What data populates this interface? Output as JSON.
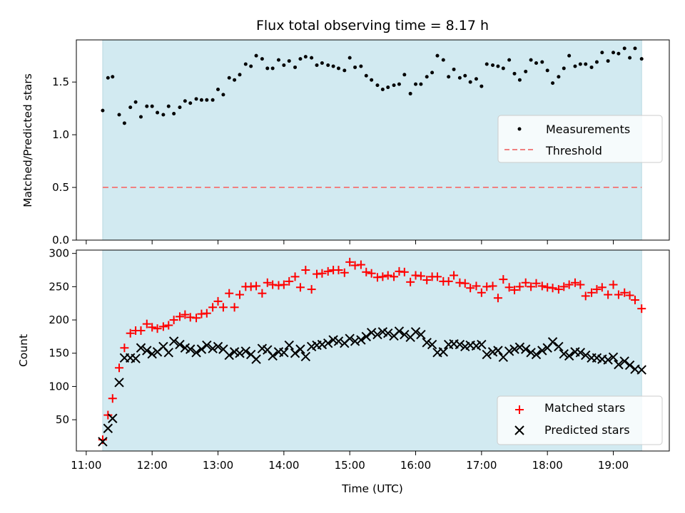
{
  "chart_data": [
    {
      "type": "scatter",
      "title": "Flux total observing time = 8.17 h",
      "ylabel": "Matched/Predicted stars",
      "xlabel": "",
      "ylim": [
        0,
        1.9
      ],
      "yticks": [
        0.0,
        0.5,
        1.0,
        1.5
      ],
      "ytick_labels": [
        "0.0",
        "0.5",
        "1.0",
        "1.5"
      ],
      "xlim": [
        10.85,
        19.85
      ],
      "shaded_range": [
        11.25,
        19.43
      ],
      "shade_color": "#d2eaf1",
      "legend_position": "center-right",
      "series": [
        {
          "name": "Measurements",
          "marker": "dot",
          "color": "#000000",
          "x": [
            11.25,
            11.33,
            11.4,
            11.5,
            11.58,
            11.67,
            11.75,
            11.83,
            11.92,
            12.0,
            12.08,
            12.17,
            12.25,
            12.33,
            12.42,
            12.5,
            12.58,
            12.67,
            12.75,
            12.83,
            12.92,
            13.0,
            13.08,
            13.17,
            13.25,
            13.33,
            13.42,
            13.5,
            13.58,
            13.67,
            13.75,
            13.83,
            13.92,
            14.0,
            14.08,
            14.17,
            14.25,
            14.33,
            14.42,
            14.5,
            14.58,
            14.67,
            14.75,
            14.83,
            14.92,
            15.0,
            15.08,
            15.17,
            15.25,
            15.33,
            15.42,
            15.5,
            15.58,
            15.67,
            15.75,
            15.83,
            15.92,
            16.0,
            16.08,
            16.17,
            16.25,
            16.33,
            16.42,
            16.5,
            16.58,
            16.67,
            16.75,
            16.83,
            16.92,
            17.0,
            17.08,
            17.17,
            17.25,
            17.33,
            17.42,
            17.5,
            17.58,
            17.67,
            17.75,
            17.83,
            17.92,
            18.0,
            18.08,
            18.17,
            18.25,
            18.33,
            18.42,
            18.5,
            18.58,
            18.67,
            18.75,
            18.83,
            18.92,
            19.0,
            19.08,
            19.17,
            19.25,
            19.33,
            19.43
          ],
          "y": [
            1.23,
            1.54,
            1.55,
            1.19,
            1.11,
            1.26,
            1.31,
            1.17,
            1.27,
            1.27,
            1.21,
            1.19,
            1.27,
            1.2,
            1.26,
            1.32,
            1.3,
            1.34,
            1.33,
            1.33,
            1.33,
            1.43,
            1.38,
            1.54,
            1.52,
            1.57,
            1.67,
            1.65,
            1.75,
            1.72,
            1.63,
            1.63,
            1.71,
            1.66,
            1.7,
            1.64,
            1.72,
            1.74,
            1.73,
            1.66,
            1.68,
            1.66,
            1.65,
            1.63,
            1.61,
            1.73,
            1.64,
            1.65,
            1.56,
            1.52,
            1.47,
            1.43,
            1.45,
            1.47,
            1.48,
            1.57,
            1.39,
            1.48,
            1.48,
            1.55,
            1.59,
            1.75,
            1.71,
            1.55,
            1.62,
            1.54,
            1.56,
            1.5,
            1.53,
            1.46,
            1.67,
            1.66,
            1.65,
            1.63,
            1.71,
            1.58,
            1.52,
            1.6,
            1.71,
            1.68,
            1.69,
            1.61,
            1.49,
            1.55,
            1.63,
            1.75,
            1.65,
            1.67,
            1.67,
            1.64,
            1.69,
            1.78,
            1.7,
            1.78,
            1.77,
            1.82,
            1.73,
            1.82,
            1.72
          ]
        },
        {
          "name": "Threshold",
          "marker": "dashed-line",
          "color": "#f08080",
          "x": [
            11.25,
            19.43
          ],
          "y": [
            0.5,
            0.5
          ]
        }
      ]
    },
    {
      "type": "scatter",
      "title": "",
      "ylabel": "Count",
      "xlabel": "Time (UTC)",
      "ylim": [
        3,
        305
      ],
      "yticks": [
        50,
        100,
        150,
        200,
        250,
        300
      ],
      "ytick_labels": [
        "50",
        "100",
        "150",
        "200",
        "250",
        "300"
      ],
      "xlim": [
        10.85,
        19.85
      ],
      "xticks": [
        11,
        12,
        13,
        14,
        15,
        16,
        17,
        18,
        19
      ],
      "xtick_labels": [
        "11:00",
        "12:00",
        "13:00",
        "14:00",
        "15:00",
        "16:00",
        "17:00",
        "18:00",
        "19:00"
      ],
      "shaded_range": [
        11.25,
        19.43
      ],
      "shade_color": "#d2eaf1",
      "legend_position": "lower-right",
      "series": [
        {
          "name": "Matched stars",
          "marker": "plus",
          "color": "#ff0000",
          "x": [
            11.25,
            11.33,
            11.4,
            11.5,
            11.58,
            11.67,
            11.75,
            11.83,
            11.92,
            12.0,
            12.08,
            12.17,
            12.25,
            12.33,
            12.42,
            12.5,
            12.58,
            12.67,
            12.75,
            12.83,
            12.92,
            13.0,
            13.08,
            13.17,
            13.25,
            13.33,
            13.42,
            13.5,
            13.58,
            13.67,
            13.75,
            13.83,
            13.92,
            14.0,
            14.08,
            14.17,
            14.25,
            14.33,
            14.42,
            14.5,
            14.58,
            14.67,
            14.75,
            14.83,
            14.92,
            15.0,
            15.08,
            15.17,
            15.25,
            15.33,
            15.42,
            15.5,
            15.58,
            15.67,
            15.75,
            15.83,
            15.92,
            16.0,
            16.08,
            16.17,
            16.25,
            16.33,
            16.42,
            16.5,
            16.58,
            16.67,
            16.75,
            16.83,
            16.92,
            17.0,
            17.08,
            17.17,
            17.25,
            17.33,
            17.42,
            17.5,
            17.58,
            17.67,
            17.75,
            17.83,
            17.92,
            18.0,
            18.08,
            18.17,
            18.25,
            18.33,
            18.42,
            18.5,
            18.58,
            18.67,
            18.75,
            18.83,
            18.92,
            19.0,
            19.08,
            19.17,
            19.25,
            19.33,
            19.43
          ],
          "y": [
            20,
            57,
            82,
            128,
            158,
            180,
            184,
            184,
            194,
            189,
            187,
            190,
            192,
            200,
            205,
            208,
            204,
            203,
            209,
            210,
            219,
            228,
            219,
            240,
            219,
            238,
            250,
            250,
            251,
            240,
            256,
            253,
            252,
            253,
            258,
            265,
            249,
            275,
            246,
            269,
            270,
            273,
            275,
            275,
            271,
            287,
            282,
            283,
            272,
            270,
            264,
            265,
            267,
            265,
            273,
            272,
            257,
            267,
            266,
            260,
            265,
            265,
            258,
            258,
            267,
            256,
            255,
            248,
            251,
            241,
            250,
            251,
            233,
            261,
            249,
            245,
            250,
            256,
            250,
            255,
            251,
            249,
            248,
            246,
            250,
            253,
            256,
            253,
            236,
            241,
            246,
            249,
            238,
            253,
            238,
            241,
            237,
            230,
            217
          ]
        },
        {
          "name": "Predicted stars",
          "marker": "x",
          "color": "#000000",
          "x": [
            11.25,
            11.33,
            11.4,
            11.5,
            11.58,
            11.67,
            11.75,
            11.83,
            11.92,
            12.0,
            12.08,
            12.17,
            12.25,
            12.33,
            12.42,
            12.5,
            12.58,
            12.67,
            12.75,
            12.83,
            12.92,
            13.0,
            13.08,
            13.17,
            13.25,
            13.33,
            13.42,
            13.5,
            13.58,
            13.67,
            13.75,
            13.83,
            13.92,
            14.0,
            14.08,
            14.17,
            14.25,
            14.33,
            14.42,
            14.5,
            14.58,
            14.67,
            14.75,
            14.83,
            14.92,
            15.0,
            15.08,
            15.17,
            15.25,
            15.33,
            15.42,
            15.5,
            15.58,
            15.67,
            15.75,
            15.83,
            15.92,
            16.0,
            16.08,
            16.17,
            16.25,
            16.33,
            16.42,
            16.5,
            16.58,
            16.67,
            16.75,
            16.83,
            16.92,
            17.0,
            17.08,
            17.17,
            17.25,
            17.33,
            17.42,
            17.5,
            17.58,
            17.67,
            17.75,
            17.83,
            17.92,
            18.0,
            18.08,
            18.17,
            18.25,
            18.33,
            18.42,
            18.5,
            18.58,
            18.67,
            18.75,
            18.83,
            18.92,
            19.0,
            19.08,
            19.17,
            19.25,
            19.33,
            19.43
          ],
          "y": [
            17,
            37,
            52,
            106,
            143,
            143,
            142,
            158,
            154,
            149,
            152,
            160,
            151,
            168,
            163,
            158,
            156,
            151,
            156,
            162,
            157,
            160,
            156,
            147,
            152,
            150,
            153,
            148,
            141,
            157,
            155,
            146,
            152,
            151,
            162,
            150,
            156,
            145,
            160,
            162,
            163,
            165,
            170,
            168,
            165,
            172,
            168,
            170,
            175,
            181,
            178,
            182,
            180,
            176,
            183,
            178,
            174,
            182,
            178,
            166,
            163,
            151,
            152,
            163,
            164,
            163,
            160,
            162,
            161,
            163,
            148,
            152,
            154,
            144,
            153,
            156,
            159,
            156,
            151,
            148,
            154,
            158,
            167,
            160,
            149,
            146,
            152,
            151,
            147,
            143,
            143,
            141,
            140,
            144,
            133,
            138,
            132,
            126,
            125
          ]
        }
      ]
    }
  ]
}
